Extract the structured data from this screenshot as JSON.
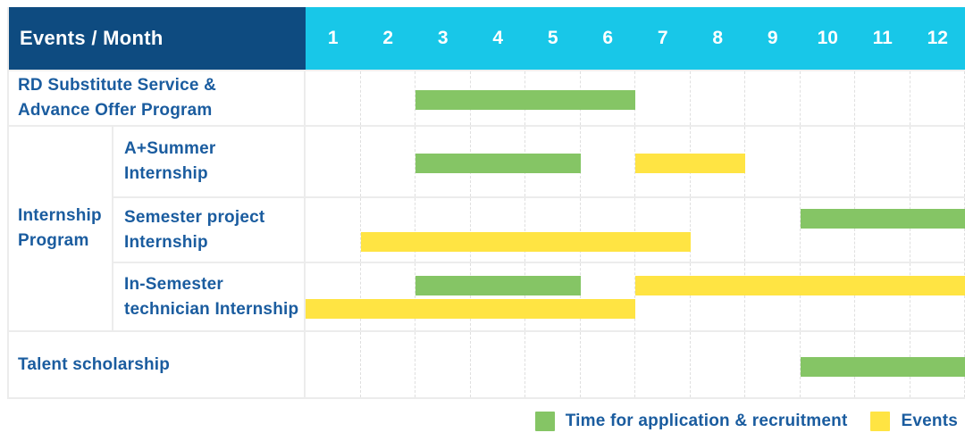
{
  "header": {
    "corner_label": "Events / Month",
    "months": [
      "1",
      "2",
      "3",
      "4",
      "5",
      "6",
      "7",
      "8",
      "9",
      "10",
      "11",
      "12"
    ]
  },
  "colors": {
    "header_bg": "#0E4B80",
    "months_bg": "#18C7E8",
    "label_text": "#1A5C9F",
    "application_bar": "#85C565",
    "event_bar": "#FFE443"
  },
  "labels": {
    "rd": [
      "RD Substitute Service &",
      "Advance Offer Program"
    ],
    "group_internship": [
      "Internship",
      "Program"
    ],
    "a_summer": [
      "A+Summer",
      "Internship"
    ],
    "semester_project": [
      "Semester project",
      "Internship"
    ],
    "in_semester": [
      "In-Semester",
      "technician Internship"
    ],
    "talent": [
      "Talent scholarship"
    ]
  },
  "legend": [
    {
      "label": "Time for application & recruitment",
      "type": "application",
      "color": "#85C565"
    },
    {
      "label": "Events",
      "type": "event",
      "color": "#FFE443"
    }
  ],
  "chart_data": {
    "type": "gantt",
    "x_unit": "month",
    "x_ticks": [
      1,
      2,
      3,
      4,
      5,
      6,
      7,
      8,
      9,
      10,
      11,
      12
    ],
    "corner_label": "Events / Month",
    "bar_types": {
      "application": {
        "label": "Time for application & recruitment",
        "color": "#85C565"
      },
      "event": {
        "label": "Events",
        "color": "#FFE443"
      }
    },
    "rows": [
      {
        "label": "RD Substitute Service & Advance Offer Program",
        "group": null,
        "bars": [
          {
            "type": "application",
            "start_month": 3,
            "end_month": 6,
            "lane": "center"
          }
        ]
      },
      {
        "label": "A+Summer Internship",
        "group": "Internship Program",
        "bars": [
          {
            "type": "application",
            "start_month": 3,
            "end_month": 5,
            "lane": "center"
          },
          {
            "type": "event",
            "start_month": 7,
            "end_month": 8,
            "lane": "center"
          }
        ]
      },
      {
        "label": "Semester project Internship",
        "group": "Internship Program",
        "bars": [
          {
            "type": "application",
            "start_month": 10,
            "end_month": 12,
            "lane": "upper"
          },
          {
            "type": "event",
            "start_month": 2,
            "end_month": 7,
            "lane": "lower"
          }
        ]
      },
      {
        "label": "In-Semester technician Internship",
        "group": "Internship Program",
        "bars": [
          {
            "type": "application",
            "start_month": 3,
            "end_month": 5,
            "lane": "upper"
          },
          {
            "type": "event",
            "start_month": 7,
            "end_month": 12,
            "lane": "upper"
          },
          {
            "type": "event",
            "start_month": 1,
            "end_month": 6,
            "lane": "lower"
          }
        ]
      },
      {
        "label": "Talent scholarship",
        "group": null,
        "bars": [
          {
            "type": "application",
            "start_month": 10,
            "end_month": 12,
            "lane": "center"
          }
        ]
      }
    ]
  }
}
